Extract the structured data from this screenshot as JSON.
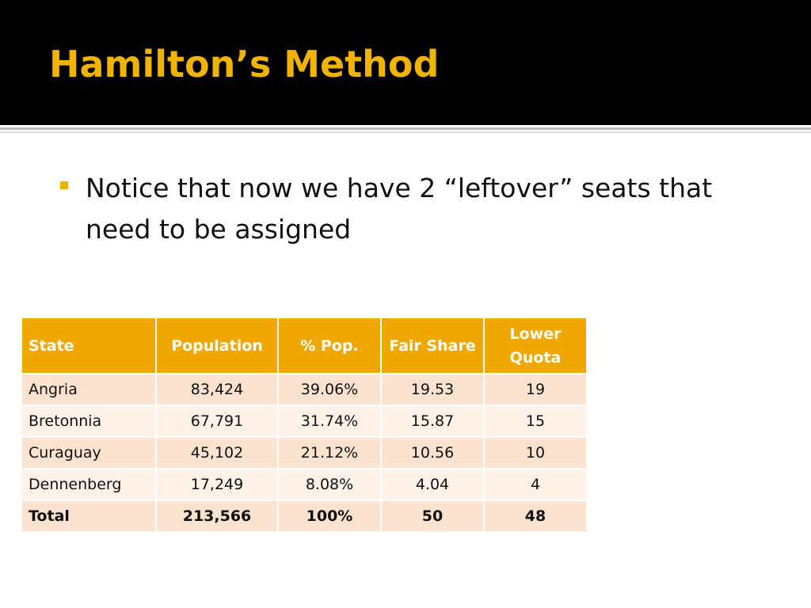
{
  "slide": {
    "title": "Hamilton’s Method",
    "bullet": "Notice that now we have 2 “leftover” seats that need to be assigned"
  },
  "table": {
    "headers": {
      "state": "State",
      "population": "Population",
      "pct_pop": "% Pop.",
      "fair_share": "Fair Share",
      "lower_quota_line1": "Lower",
      "lower_quota_line2": "Quota"
    },
    "rows": [
      {
        "state": "Angria",
        "population": "83,424",
        "pct_pop": "39.06%",
        "fair_share": "19.53",
        "lower_quota": "19"
      },
      {
        "state": "Bretonnia",
        "population": "67,791",
        "pct_pop": "31.74%",
        "fair_share": "15.87",
        "lower_quota": "15"
      },
      {
        "state": "Curaguay",
        "population": "45,102",
        "pct_pop": "21.12%",
        "fair_share": "10.56",
        "lower_quota": "10"
      },
      {
        "state": "Dennenberg",
        "population": "17,249",
        "pct_pop": "8.08%",
        "fair_share": "4.04",
        "lower_quota": "4"
      }
    ],
    "total": {
      "state": "Total",
      "population": "213,566",
      "pct_pop": "100%",
      "fair_share": "50",
      "lower_quota": "48"
    }
  },
  "colors": {
    "title_bar": "#000000",
    "accent": "#f0b400",
    "header_fill": "#f0a800",
    "row_dark": "#fce3cf",
    "row_light": "#fef2e9"
  }
}
